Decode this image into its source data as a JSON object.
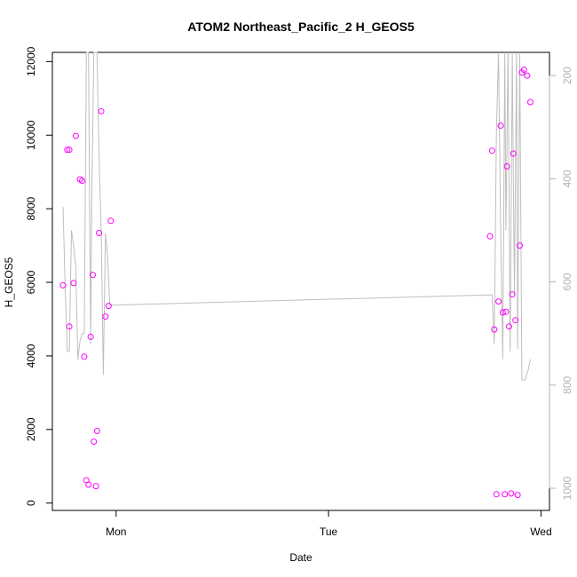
{
  "chart_data": {
    "type": "scatter",
    "title": "ATOM2 Northeast_Pacific_2 H_GEOS5",
    "xlabel": "Date",
    "ylabel": "H_GEOS5",
    "xlim": [
      -0.3,
      2.04
    ],
    "ylim": [
      -200,
      12250
    ],
    "x_ticks": [
      {
        "value": 0,
        "label": "Mon"
      },
      {
        "value": 1,
        "label": "Tue"
      },
      {
        "value": 2,
        "label": "Wed"
      }
    ],
    "y_ticks": [
      0,
      2000,
      4000,
      6000,
      8000,
      10000,
      12000
    ],
    "y2_ticks": [
      200,
      400,
      600,
      800,
      1000
    ],
    "y2_lim_top_bottom": [
      155,
      1043
    ],
    "grid": false,
    "legend": "none",
    "colors": {
      "points": "#ff00ff",
      "line": "#bebebe",
      "axes": "#000000",
      "right_axis": "#b3b3b3"
    },
    "series": [
      {
        "type": "scatter",
        "axis": "left",
        "points": [
          [
            -0.25,
            5920
          ],
          [
            -0.23,
            9600
          ],
          [
            -0.22,
            9600
          ],
          [
            -0.22,
            4800
          ],
          [
            -0.2,
            5980
          ],
          [
            -0.19,
            9980
          ],
          [
            -0.17,
            8800
          ],
          [
            -0.16,
            8760
          ],
          [
            -0.15,
            3980
          ],
          [
            -0.14,
            620
          ],
          [
            -0.13,
            500
          ],
          [
            -0.12,
            4520
          ],
          [
            -0.11,
            6200
          ],
          [
            -0.105,
            1670
          ],
          [
            -0.095,
            460
          ],
          [
            -0.09,
            1960
          ],
          [
            -0.08,
            7340
          ],
          [
            -0.07,
            10650
          ],
          [
            -0.05,
            5070
          ],
          [
            -0.035,
            5360
          ],
          [
            -0.025,
            7670
          ],
          [
            1.76,
            7250
          ],
          [
            1.77,
            9580
          ],
          [
            1.78,
            4720
          ],
          [
            1.79,
            240
          ],
          [
            1.8,
            5480
          ],
          [
            1.81,
            10260
          ],
          [
            1.82,
            5180
          ],
          [
            1.83,
            240
          ],
          [
            1.835,
            5200
          ],
          [
            1.84,
            9150
          ],
          [
            1.85,
            4800
          ],
          [
            1.86,
            260
          ],
          [
            1.865,
            5670
          ],
          [
            1.87,
            9500
          ],
          [
            1.88,
            4970
          ],
          [
            1.89,
            220
          ],
          [
            1.9,
            7000
          ],
          [
            1.91,
            11700
          ],
          [
            1.92,
            11780
          ],
          [
            1.935,
            11620
          ],
          [
            1.95,
            10900
          ]
        ]
      },
      {
        "type": "line",
        "axis": "right",
        "points": [
          [
            -0.25,
            455
          ],
          [
            -0.24,
            610
          ],
          [
            -0.23,
            735
          ],
          [
            -0.22,
            735
          ],
          [
            -0.21,
            500
          ],
          [
            -0.2,
            530
          ],
          [
            -0.19,
            570
          ],
          [
            -0.18,
            750
          ],
          [
            -0.17,
            715
          ],
          [
            -0.16,
            700
          ],
          [
            -0.15,
            700
          ],
          [
            -0.14,
            150
          ],
          [
            -0.13,
            150
          ],
          [
            -0.12,
            720
          ],
          [
            -0.115,
            450
          ],
          [
            -0.105,
            150
          ],
          [
            -0.095,
            150
          ],
          [
            -0.09,
            155
          ],
          [
            -0.08,
            360
          ],
          [
            -0.07,
            500
          ],
          [
            -0.06,
            780
          ],
          [
            -0.05,
            505
          ],
          [
            -0.04,
            550
          ],
          [
            -0.03,
            645
          ],
          [
            -0.01,
            645
          ],
          [
            1.77,
            625
          ],
          [
            1.78,
            720
          ],
          [
            1.79,
            310
          ],
          [
            1.8,
            150
          ],
          [
            1.81,
            500
          ],
          [
            1.82,
            750
          ],
          [
            1.83,
            150
          ],
          [
            1.835,
            500
          ],
          [
            1.845,
            150
          ],
          [
            1.855,
            735
          ],
          [
            1.865,
            150
          ],
          [
            1.875,
            625
          ],
          [
            1.885,
            150
          ],
          [
            1.89,
            730
          ],
          [
            1.9,
            150
          ],
          [
            1.91,
            790
          ],
          [
            1.925,
            790
          ],
          [
            1.94,
            770
          ],
          [
            1.95,
            750
          ]
        ]
      }
    ]
  }
}
